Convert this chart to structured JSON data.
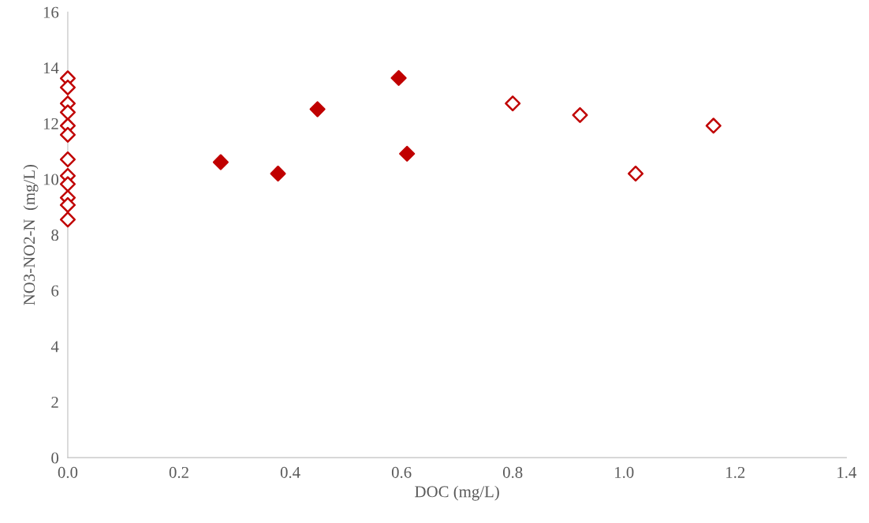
{
  "chart_data": {
    "type": "scatter",
    "xlabel": "DOC (mg/L)",
    "ylabel": "NO3-NO2-N  (mg/L)",
    "marker": "diamond",
    "grid": false,
    "legend": false,
    "xlim": [
      0,
      1.4
    ],
    "ylim": [
      0,
      16
    ],
    "xticks": [
      {
        "value": 0,
        "label": "0.0"
      },
      0.2,
      0.4,
      0.6,
      0.8,
      {
        "value": 1,
        "label": "1.0"
      },
      1.2,
      1.4
    ],
    "yticks": [
      0,
      2,
      4,
      6,
      8,
      10,
      12,
      14,
      16
    ],
    "series": [
      {
        "color": "#c00000",
        "x": [
          0,
          0,
          0,
          0,
          0,
          0,
          0,
          0,
          0,
          0,
          0,
          0,
          0.8,
          0.921,
          1.161,
          1.021
        ],
        "values": [
          13.62,
          13.29,
          12.72,
          12.4,
          11.92,
          11.59,
          10.71,
          10.12,
          9.82,
          9.33,
          9.07,
          8.55,
          12.72,
          12.3,
          11.92,
          10.2
        ]
      },
      {
        "color": "#c00000",
        "x": [
          0.275,
          0.378,
          0.449,
          0.595,
          0.61
        ],
        "values": [
          10.61,
          10.2,
          12.51,
          13.63,
          10.91
        ]
      }
    ]
  }
}
